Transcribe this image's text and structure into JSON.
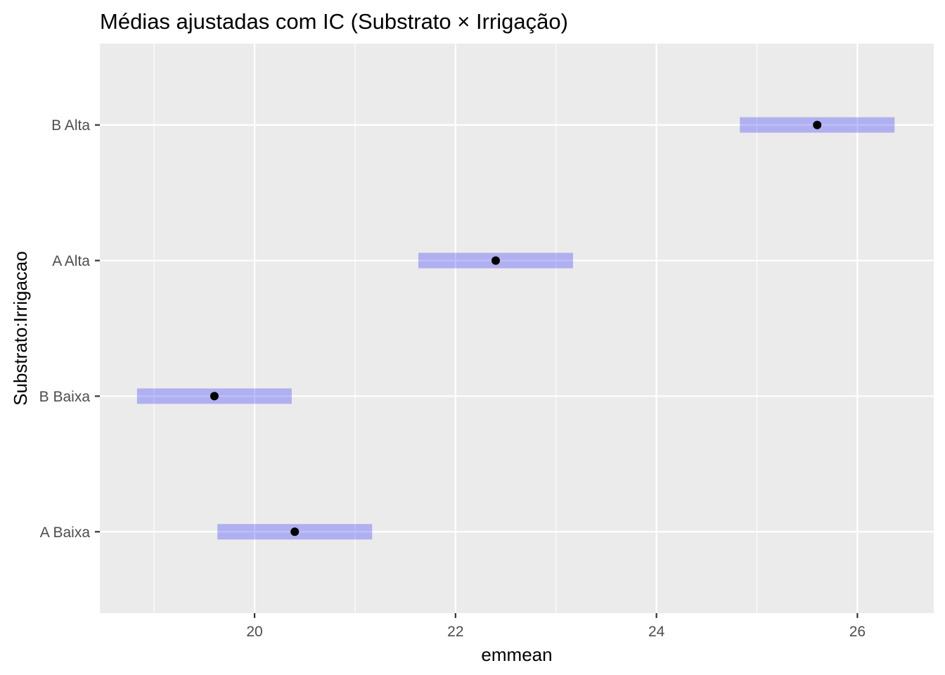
{
  "chart_data": {
    "type": "scatter",
    "title": "Médias ajustadas com IC (Substrato × Irrigação)",
    "xlabel": "emmean",
    "ylabel": "Substrato:Irrigacao",
    "xlim": [
      18.46,
      26.76
    ],
    "x_ticks": [
      20,
      22,
      24,
      26
    ],
    "categories": [
      "A Baixa",
      "B Baixa",
      "A Alta",
      "B Alta"
    ],
    "points": [
      {
        "category": "A Baixa",
        "emmean": 20.4,
        "lower": 19.63,
        "upper": 21.17
      },
      {
        "category": "B Baixa",
        "emmean": 19.6,
        "lower": 18.83,
        "upper": 20.37
      },
      {
        "category": "A Alta",
        "emmean": 22.4,
        "lower": 21.63,
        "upper": 23.17
      },
      {
        "category": "B Alta",
        "emmean": 25.6,
        "lower": 24.83,
        "upper": 26.37
      }
    ],
    "grid": true,
    "colors": {
      "panel_background": "#ebebeb",
      "grid": "#ffffff",
      "interval": "#0000ff",
      "point": "#000000"
    }
  }
}
